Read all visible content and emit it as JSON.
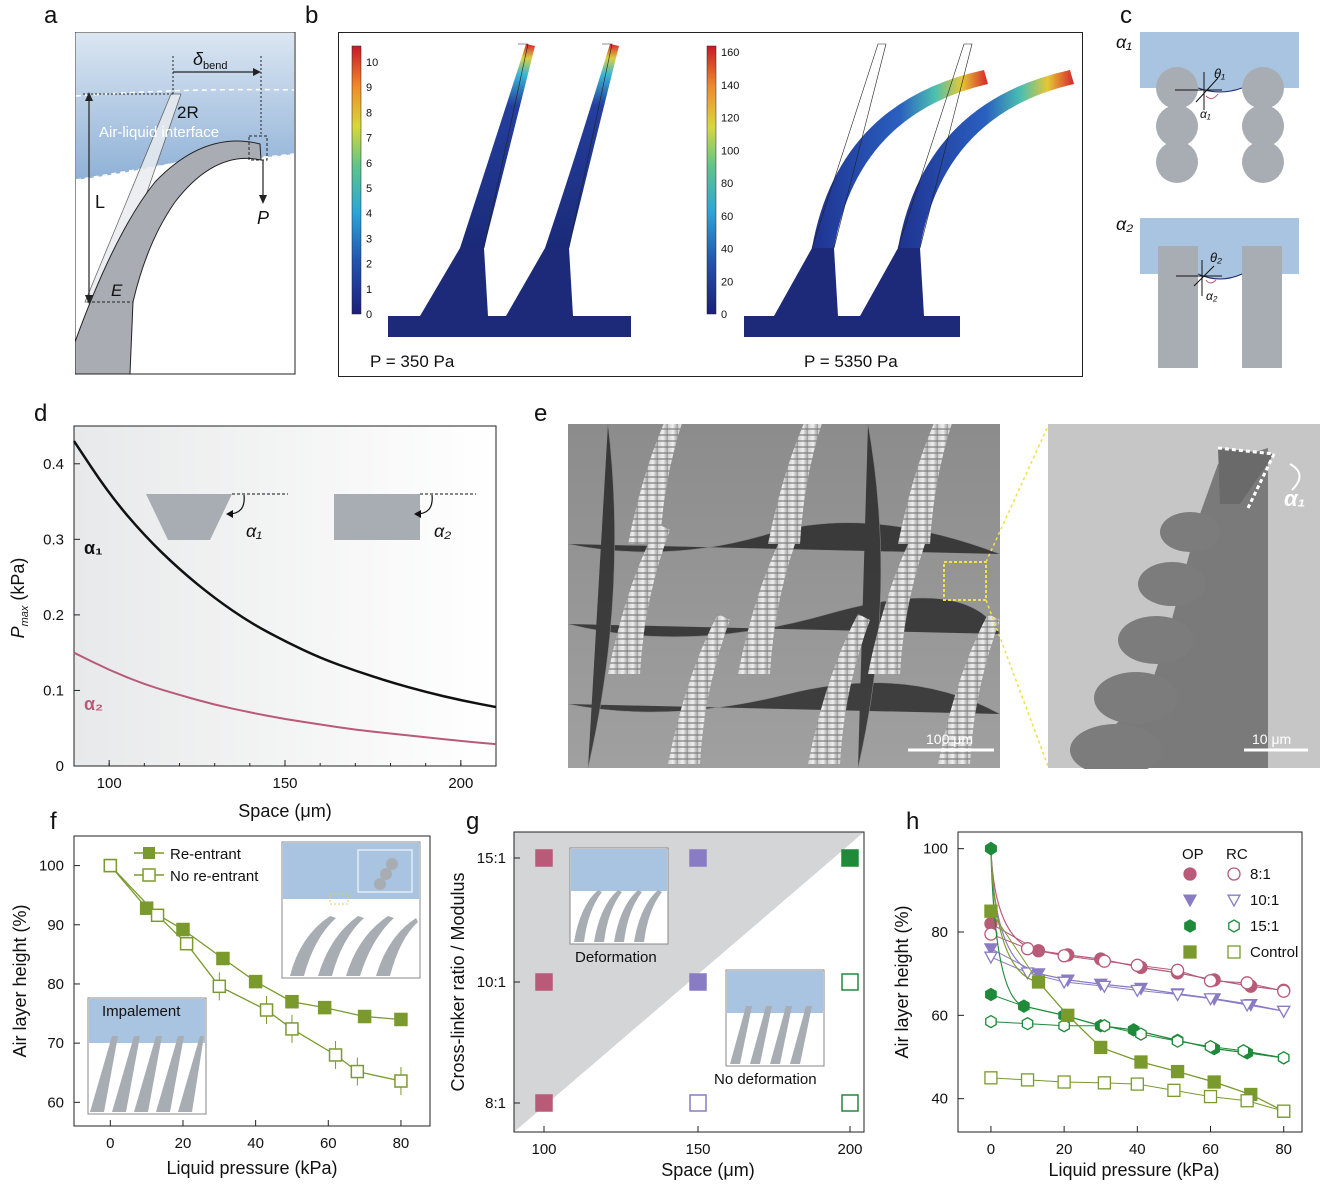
{
  "panels": {
    "a": {
      "label": "a",
      "delta": "δ",
      "delta_sub": "bend",
      "two_r": "2R",
      "interface": "Air-liquid interface",
      "L": "L",
      "P": "P",
      "E": "E"
    },
    "b": {
      "label": "b",
      "scale1": [
        "10",
        "9",
        "8",
        "7",
        "6",
        "5",
        "4",
        "3",
        "2",
        "1",
        "0"
      ],
      "scale2": [
        "160",
        "140",
        "120",
        "100",
        "80",
        "60",
        "40",
        "20",
        "0"
      ],
      "p1": "P = 350 Pa",
      "p2": "P = 5350 Pa"
    },
    "c": {
      "label": "c",
      "alpha1": "α₁",
      "theta1": "θ₁",
      "alpha2": "α₂",
      "theta2": "θ₂"
    },
    "d": {
      "label": "d",
      "xlabel": "Space (μm)",
      "ylabel_main": "P",
      "ylabel_sub": "max",
      "ylabel_unit": " (kPa)",
      "xticks": [
        "100",
        "150",
        "200"
      ],
      "yticks": [
        "0",
        "0.1",
        "0.2",
        "0.3",
        "0.4"
      ],
      "curve1": "α₁",
      "curve2": "α₂",
      "inset1": "α₁",
      "inset2": "α₂"
    },
    "e": {
      "label": "e",
      "scale1": "100 μm",
      "scale2": "10 μm",
      "alpha": "α₁"
    },
    "f": {
      "label": "f",
      "xlabel": "Liquid pressure (kPa)",
      "ylabel": "Air layer height (%)",
      "xticks": [
        "0",
        "20",
        "40",
        "60",
        "80"
      ],
      "yticks": [
        "60",
        "70",
        "80",
        "90",
        "100"
      ],
      "legend": [
        "Re-entrant",
        "No re-entrant"
      ],
      "inset": "Impalement"
    },
    "g": {
      "label": "g",
      "xlabel": "Space (μm)",
      "ylabel": "Cross-linker ratio / Modulus",
      "xticks": [
        "100",
        "150",
        "200"
      ],
      "yticks": [
        "8:1",
        "10:1",
        "15:1"
      ],
      "inset1": "Deformation",
      "inset2": "No deformation"
    },
    "h": {
      "label": "h",
      "xlabel": "Liquid pressure (kPa)",
      "ylabel": "Air layer height (%)",
      "xticks": [
        "0",
        "20",
        "40",
        "60",
        "80"
      ],
      "yticks": [
        "40",
        "60",
        "80",
        "100"
      ],
      "legend_op": "OP",
      "legend_rc": "RC",
      "legend": [
        "8:1",
        "10:1",
        "15:1",
        "Control"
      ]
    }
  },
  "colors": {
    "green": "#7a9a2e",
    "dark_green": "#1e8a3a",
    "pink": "#b85a78",
    "purple": "#8a7cc4",
    "water": "#a9c4e0",
    "gray": "#a8adb3"
  },
  "chart_data": [
    {
      "panel": "d",
      "type": "line",
      "xlim": [
        90,
        210
      ],
      "ylim": [
        0,
        0.45
      ],
      "series": [
        {
          "name": "α₁",
          "x": [
            90,
            100,
            110,
            120,
            130,
            140,
            150,
            160,
            170,
            180,
            190,
            200,
            210
          ],
          "values": [
            0.43,
            0.36,
            0.305,
            0.26,
            0.222,
            0.19,
            0.165,
            0.143,
            0.126,
            0.111,
            0.098,
            0.087,
            0.078
          ]
        },
        {
          "name": "α₂",
          "x": [
            90,
            100,
            110,
            120,
            130,
            140,
            150,
            160,
            170,
            180,
            190,
            200,
            210
          ],
          "values": [
            0.15,
            0.127,
            0.108,
            0.094,
            0.081,
            0.071,
            0.062,
            0.055,
            0.048,
            0.043,
            0.038,
            0.033,
            0.029
          ]
        }
      ]
    },
    {
      "panel": "f",
      "type": "line",
      "xlim": [
        -10,
        88
      ],
      "ylim": [
        56,
        105
      ],
      "series": [
        {
          "name": "Re-entrant",
          "x": [
            0,
            10,
            20,
            31,
            40,
            50,
            59,
            70,
            80
          ],
          "values": [
            100,
            92.8,
            89.2,
            84.3,
            80.4,
            77,
            76,
            74.5,
            74
          ]
        },
        {
          "name": "No re-entrant",
          "x": [
            0,
            13,
            21,
            30,
            43,
            50,
            62,
            68,
            80
          ],
          "values": [
            100,
            91.6,
            86.8,
            79.6,
            75.6,
            72.4,
            68,
            65.2,
            63.6
          ]
        }
      ]
    },
    {
      "panel": "g",
      "type": "scatter",
      "x_categories": [
        "100",
        "150",
        "200"
      ],
      "y_categories": [
        "8:1",
        "10:1",
        "15:1"
      ],
      "points": [
        {
          "x": "100",
          "y": "15:1",
          "deformation": true
        },
        {
          "x": "150",
          "y": "15:1",
          "deformation": true
        },
        {
          "x": "200",
          "y": "15:1",
          "deformation": true
        },
        {
          "x": "100",
          "y": "10:1",
          "deformation": true
        },
        {
          "x": "150",
          "y": "10:1",
          "deformation": true
        },
        {
          "x": "200",
          "y": "10:1",
          "deformation": false
        },
        {
          "x": "100",
          "y": "8:1",
          "deformation": true
        },
        {
          "x": "150",
          "y": "8:1",
          "deformation": false
        },
        {
          "x": "200",
          "y": "8:1",
          "deformation": false
        }
      ]
    },
    {
      "panel": "h",
      "type": "line",
      "xlim": [
        -9,
        85
      ],
      "ylim": [
        32,
        104
      ],
      "series": [
        {
          "name": "8:1 OP",
          "x": [
            0,
            13,
            21,
            30,
            41,
            51,
            61,
            71,
            80
          ],
          "values": [
            82,
            75.5,
            74.5,
            73.5,
            71.5,
            70.2,
            68.5,
            67,
            66
          ]
        },
        {
          "name": "8:1 RC",
          "x": [
            0,
            10,
            20,
            31,
            40,
            51,
            60,
            70,
            80
          ],
          "values": [
            79.5,
            76,
            74.3,
            73,
            72,
            70.8,
            68.3,
            67.8,
            65.8
          ]
        },
        {
          "name": "10:1 OP",
          "x": [
            0,
            13,
            21,
            30,
            41,
            51,
            61,
            71,
            80
          ],
          "values": [
            76,
            70,
            68.5,
            67.5,
            66.5,
            65.2,
            64,
            62.6,
            61
          ]
        },
        {
          "name": "10:1 RC",
          "x": [
            0,
            10,
            20,
            31,
            40,
            51,
            60,
            70,
            80
          ],
          "values": [
            74,
            70.2,
            68,
            67,
            66,
            65,
            64,
            62.5,
            61
          ]
        },
        {
          "name": "15:1 OP",
          "x": [
            0,
            9,
            20,
            30,
            39,
            51,
            61,
            70,
            80
          ],
          "values": [
            65,
            62.2,
            60,
            57.5,
            56.5,
            54,
            52,
            51,
            49.8
          ]
        },
        {
          "name": "15:1 RC",
          "x": [
            0,
            10,
            20,
            31,
            41,
            51,
            60,
            69,
            80
          ],
          "values": [
            58.5,
            58,
            57.5,
            57.5,
            55.5,
            53.8,
            52.5,
            51.5,
            49.8
          ]
        },
        {
          "name": "Control OP",
          "x": [
            0,
            13,
            21,
            30,
            41,
            51,
            61,
            71,
            80
          ],
          "values": [
            85,
            68,
            60,
            52.3,
            48.8,
            46.5,
            44,
            41,
            37
          ]
        },
        {
          "name": "Control RC",
          "x": [
            0,
            10,
            20,
            31,
            40,
            50,
            60,
            70,
            80
          ],
          "values": [
            45,
            44.5,
            44,
            43.8,
            43.5,
            42,
            40.5,
            39.5,
            37
          ]
        }
      ]
    }
  ]
}
